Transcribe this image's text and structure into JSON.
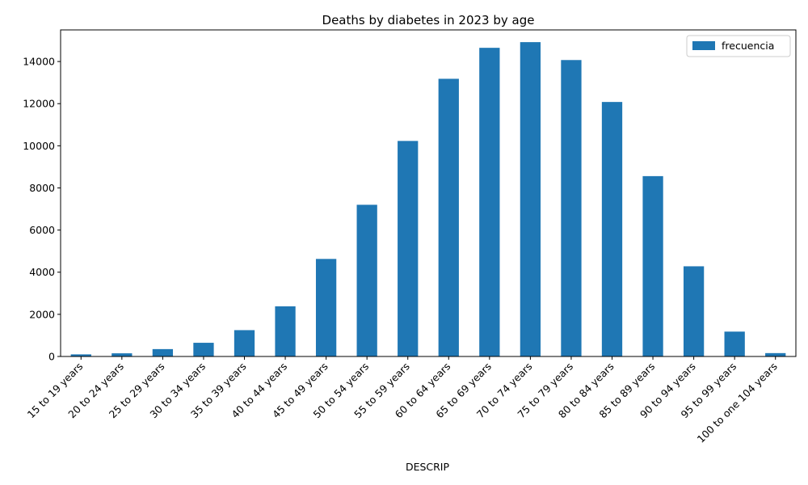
{
  "chart_data": {
    "type": "bar",
    "title": "Deaths by diabetes in 2023 by age",
    "xlabel": "DESCRIP",
    "ylabel": "",
    "ylim": [
      0,
      15500
    ],
    "yticks": [
      0,
      2000,
      4000,
      6000,
      8000,
      10000,
      12000,
      14000
    ],
    "grid": false,
    "legend_position": "top-right",
    "bar_color": "#1f77b4",
    "categories": [
      "15 to 19 years",
      "20 to 24 years",
      "25 to 29 years",
      "30 to 34 years",
      "35 to 39 years",
      "40 to 44 years",
      "45 to 49 years",
      "50 to 54 years",
      "55 to 59 years",
      "60 to 64 years",
      "65 to 69 years",
      "70 to 74 years",
      "75 to 79 years",
      "80 to 84 years",
      "85 to 89 years",
      "90 to 94 years",
      "95 to 99 years",
      "100 to one 104 years"
    ],
    "series": [
      {
        "name": "frecuencia",
        "values": [
          100,
          150,
          350,
          650,
          1250,
          2380,
          4630,
          7200,
          10230,
          13180,
          14650,
          14920,
          14070,
          12080,
          8560,
          4280,
          1180,
          160
        ]
      }
    ]
  }
}
